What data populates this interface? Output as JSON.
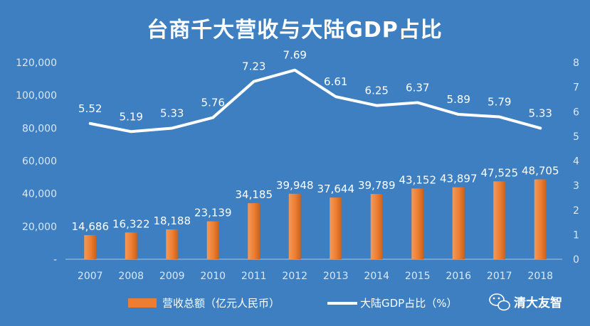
{
  "chart_data": {
    "type": "bar+line",
    "title": "台商千大营收与大陆GDP占比",
    "categories": [
      "2007",
      "2008",
      "2009",
      "2010",
      "2011",
      "2012",
      "2013",
      "2014",
      "2015",
      "2016",
      "2017",
      "2018"
    ],
    "series": [
      {
        "name": "营收总额（亿元人民币）",
        "type": "bar",
        "axis": "left",
        "color": "#ed7d31",
        "values": [
          14686,
          16322,
          18188,
          23139,
          34185,
          39948,
          37644,
          39789,
          43152,
          43897,
          47525,
          48705
        ],
        "labels": [
          "14,686",
          "16,322",
          "18,188",
          "23,139",
          "34,185",
          "39,948",
          "37,644",
          "39,789",
          "43,152",
          "43,897",
          "47,525",
          "48,705"
        ]
      },
      {
        "name": "大陆GDP占比（%）",
        "type": "line",
        "axis": "right",
        "color": "#ffffff",
        "values": [
          5.52,
          5.19,
          5.33,
          5.76,
          7.23,
          7.69,
          6.61,
          6.25,
          6.37,
          5.89,
          5.79,
          5.33
        ],
        "labels": [
          "5.52",
          "5.19",
          "5.33",
          "5.76",
          "7.23",
          "7.69",
          "6.61",
          "6.25",
          "6.37",
          "5.89",
          "5.79",
          "5.33"
        ]
      }
    ],
    "y_left": {
      "ylim": [
        0,
        120000
      ],
      "ticks": [
        0,
        20000,
        40000,
        60000,
        80000,
        100000,
        120000
      ],
      "tick_labels": [
        "-",
        "20,000",
        "40,000",
        "60,000",
        "80,000",
        "100,000",
        "120,000"
      ]
    },
    "y_right": {
      "ylim": [
        0,
        8
      ],
      "ticks": [
        0,
        1,
        2,
        3,
        4,
        5,
        6,
        7,
        8
      ],
      "tick_labels": [
        "0",
        "1",
        "2",
        "3",
        "4",
        "5",
        "6",
        "7",
        "8"
      ]
    },
    "grid": false,
    "legend": "bottom",
    "background": "#3d7fc1"
  },
  "watermark": {
    "text": "清大友智",
    "icon": "wechat-icon"
  }
}
